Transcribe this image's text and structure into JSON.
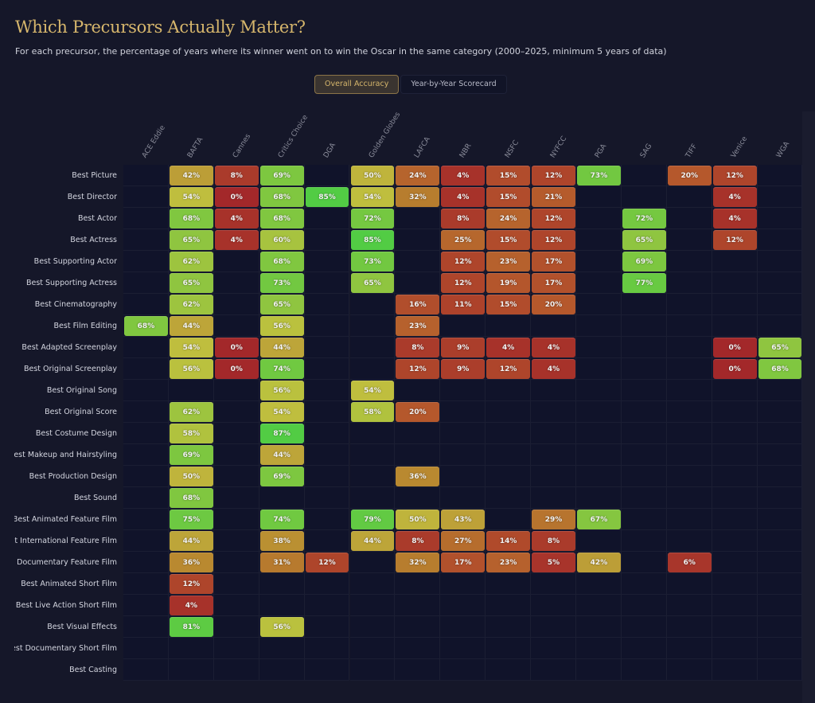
{
  "header": {
    "title": "Which Precursors Actually Matter?",
    "subtitle": "For each precursor, the percentage of years where its winner went on to win the Oscar in the same category (2000–2025, minimum 5 years of data)"
  },
  "tabs": [
    {
      "label": "Overall Accuracy",
      "active": true
    },
    {
      "label": "Year-by-Year Scorecard",
      "active": false
    }
  ],
  "chart_data": {
    "type": "heatmap",
    "value_unit": "%",
    "color_scale": [
      {
        "value": 0,
        "color": "#a3282a"
      },
      {
        "value": 20,
        "color": "#b5582c"
      },
      {
        "value": 35,
        "color": "#b8862f"
      },
      {
        "value": 45,
        "color": "#bea83a"
      },
      {
        "value": 55,
        "color": "#bfc03e"
      },
      {
        "value": 68,
        "color": "#80c740"
      },
      {
        "value": 85,
        "color": "#52cc44"
      }
    ],
    "columns": [
      "ACE Eddie",
      "BAFTA",
      "Cannes",
      "Critics Choice",
      "DGA",
      "Golden Globes",
      "LAFCA",
      "NBR",
      "NSFC",
      "NYFCC",
      "PGA",
      "SAG",
      "TIFF",
      "Venice",
      "WGA"
    ],
    "rows": [
      {
        "label": "Best Picture",
        "values": [
          null,
          42,
          8,
          69,
          null,
          50,
          24,
          4,
          15,
          12,
          73,
          null,
          20,
          12,
          null
        ]
      },
      {
        "label": "Best Director",
        "values": [
          null,
          54,
          0,
          68,
          85,
          54,
          32,
          4,
          15,
          21,
          null,
          null,
          null,
          4,
          null
        ]
      },
      {
        "label": "Best Actor",
        "values": [
          null,
          68,
          4,
          68,
          null,
          72,
          null,
          8,
          24,
          12,
          null,
          72,
          null,
          4,
          null
        ]
      },
      {
        "label": "Best Actress",
        "values": [
          null,
          65,
          4,
          60,
          null,
          85,
          null,
          25,
          15,
          12,
          null,
          65,
          null,
          12,
          null
        ]
      },
      {
        "label": "Best Supporting Actor",
        "values": [
          null,
          62,
          null,
          68,
          null,
          73,
          null,
          12,
          23,
          17,
          null,
          69,
          null,
          null,
          null
        ]
      },
      {
        "label": "Best Supporting Actress",
        "values": [
          null,
          65,
          null,
          73,
          null,
          65,
          null,
          12,
          19,
          17,
          null,
          77,
          null,
          null,
          null
        ]
      },
      {
        "label": "Best Cinematography",
        "values": [
          null,
          62,
          null,
          65,
          null,
          null,
          16,
          11,
          15,
          20,
          null,
          null,
          null,
          null,
          null
        ]
      },
      {
        "label": "Best Film Editing",
        "values": [
          68,
          44,
          null,
          56,
          null,
          null,
          23,
          null,
          null,
          null,
          null,
          null,
          null,
          null,
          null
        ]
      },
      {
        "label": "Best Adapted Screenplay",
        "values": [
          null,
          54,
          0,
          44,
          null,
          null,
          8,
          9,
          4,
          4,
          null,
          null,
          null,
          0,
          65
        ]
      },
      {
        "label": "Best Original Screenplay",
        "values": [
          null,
          56,
          0,
          74,
          null,
          null,
          12,
          9,
          12,
          4,
          null,
          null,
          null,
          0,
          68
        ]
      },
      {
        "label": "Best Original Song",
        "values": [
          null,
          null,
          null,
          56,
          null,
          54,
          null,
          null,
          null,
          null,
          null,
          null,
          null,
          null,
          null
        ]
      },
      {
        "label": "Best Original Score",
        "values": [
          null,
          62,
          null,
          54,
          null,
          58,
          20,
          null,
          null,
          null,
          null,
          null,
          null,
          null,
          null
        ]
      },
      {
        "label": "Best Costume Design",
        "values": [
          null,
          58,
          null,
          87,
          null,
          null,
          null,
          null,
          null,
          null,
          null,
          null,
          null,
          null,
          null
        ]
      },
      {
        "label": "Best Makeup and Hairstyling",
        "values": [
          null,
          69,
          null,
          44,
          null,
          null,
          null,
          null,
          null,
          null,
          null,
          null,
          null,
          null,
          null
        ]
      },
      {
        "label": "Best Production Design",
        "values": [
          null,
          50,
          null,
          69,
          null,
          null,
          36,
          null,
          null,
          null,
          null,
          null,
          null,
          null,
          null
        ]
      },
      {
        "label": "Best Sound",
        "values": [
          null,
          68,
          null,
          null,
          null,
          null,
          null,
          null,
          null,
          null,
          null,
          null,
          null,
          null,
          null
        ]
      },
      {
        "label": "Best Animated Feature Film",
        "values": [
          null,
          75,
          null,
          74,
          null,
          79,
          50,
          43,
          null,
          29,
          67,
          null,
          null,
          null,
          null
        ]
      },
      {
        "label": "Best International Feature Film",
        "values": [
          null,
          44,
          null,
          38,
          null,
          44,
          8,
          27,
          14,
          8,
          null,
          null,
          null,
          null,
          null
        ]
      },
      {
        "label": "Best Documentary Feature Film",
        "values": [
          null,
          36,
          null,
          31,
          12,
          null,
          32,
          17,
          23,
          5,
          42,
          null,
          6,
          null,
          null
        ]
      },
      {
        "label": "Best Animated Short Film",
        "values": [
          null,
          12,
          null,
          null,
          null,
          null,
          null,
          null,
          null,
          null,
          null,
          null,
          null,
          null,
          null
        ]
      },
      {
        "label": "Best Live Action Short Film",
        "values": [
          null,
          4,
          null,
          null,
          null,
          null,
          null,
          null,
          null,
          null,
          null,
          null,
          null,
          null,
          null
        ]
      },
      {
        "label": "Best Visual Effects",
        "values": [
          null,
          81,
          null,
          56,
          null,
          null,
          null,
          null,
          null,
          null,
          null,
          null,
          null,
          null,
          null
        ]
      },
      {
        "label": "Best Documentary Short Film",
        "values": [
          null,
          null,
          null,
          null,
          null,
          null,
          null,
          null,
          null,
          null,
          null,
          null,
          null,
          null,
          null
        ]
      },
      {
        "label": "Best Casting",
        "values": [
          null,
          null,
          null,
          null,
          null,
          null,
          null,
          null,
          null,
          null,
          null,
          null,
          null,
          null,
          null
        ]
      }
    ]
  }
}
